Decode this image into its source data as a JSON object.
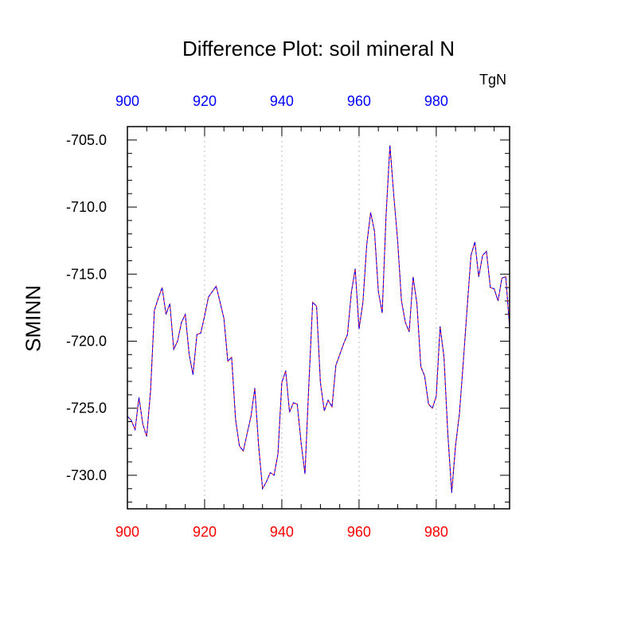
{
  "chart_data": {
    "type": "line",
    "title": "Difference Plot: soil mineral N",
    "units": "TgN",
    "ylabel": "SMINN",
    "xlabel": "",
    "xlim": [
      900,
      999
    ],
    "ylim": [
      -732.5,
      -704
    ],
    "x_ticks": [
      "900",
      "920",
      "940",
      "960",
      "980"
    ],
    "y_ticks": [
      "-705.0",
      "-710.0",
      "-715.0",
      "-720.0",
      "-725.0",
      "-730.0"
    ],
    "grid": "vertical dotted lines at x ticks",
    "colors": {
      "bottom_axis_labels": "#ff0000",
      "top_axis_labels": "#0000ff",
      "series_line_1": "#ff0000",
      "series_line_2": "#0000ff"
    },
    "series": [
      {
        "x": [
          900,
          901,
          902,
          903,
          904,
          905,
          906,
          907,
          908,
          909,
          910,
          911,
          912,
          913,
          914,
          915,
          916,
          917,
          918,
          919,
          920,
          921,
          922,
          923,
          924,
          925,
          926,
          927,
          928,
          929,
          930,
          931,
          932,
          933,
          934,
          935,
          936,
          937,
          938,
          939,
          940,
          941,
          942,
          943,
          944,
          945,
          946,
          947,
          948,
          949,
          950,
          951,
          952,
          953,
          954,
          955,
          956,
          957,
          958,
          959,
          960,
          961,
          962,
          963,
          964,
          965,
          966,
          967,
          968,
          969,
          970,
          971,
          972,
          973,
          974,
          975,
          976,
          977,
          978,
          979,
          980,
          981,
          982,
          983,
          984,
          985,
          986,
          987,
          988,
          989,
          990,
          991,
          992,
          993,
          994,
          995,
          996,
          997,
          998,
          999
        ],
        "values": [
          -725.6,
          -725.9,
          -726.6,
          -724.2,
          -726.2,
          -727.1,
          -723.7,
          -717.7,
          -716.8,
          -716.0,
          -718.0,
          -717.2,
          -720.6,
          -720.0,
          -718.6,
          -718.0,
          -721.0,
          -722.5,
          -719.5,
          -719.4,
          -718.1,
          -716.7,
          -716.3,
          -715.9,
          -717.1,
          -718.3,
          -721.5,
          -721.2,
          -725.8,
          -727.8,
          -728.2,
          -726.9,
          -725.6,
          -723.5,
          -727.8,
          -731.0,
          -730.5,
          -729.8,
          -730.0,
          -728.4,
          -723.1,
          -722.2,
          -725.3,
          -724.6,
          -724.7,
          -727.6,
          -729.9,
          -723.2,
          -717.1,
          -717.4,
          -723.1,
          -725.2,
          -724.4,
          -724.9,
          -721.8,
          -721.0,
          -720.2,
          -719.5,
          -716.4,
          -714.6,
          -719.1,
          -717.1,
          -712.8,
          -710.4,
          -711.8,
          -716.3,
          -717.9,
          -710.7,
          -705.4,
          -709.1,
          -712.5,
          -717.0,
          -718.6,
          -719.3,
          -715.2,
          -717.2,
          -721.9,
          -722.6,
          -724.7,
          -725.0,
          -724.1,
          -718.9,
          -721.2,
          -726.9,
          -731.3,
          -727.8,
          -725.4,
          -721.6,
          -717.5,
          -713.6,
          -712.6,
          -715.2,
          -713.6,
          -713.3,
          -716.0,
          -716.1,
          -717.0,
          -715.3,
          -715.2,
          -719.0
        ]
      }
    ]
  }
}
